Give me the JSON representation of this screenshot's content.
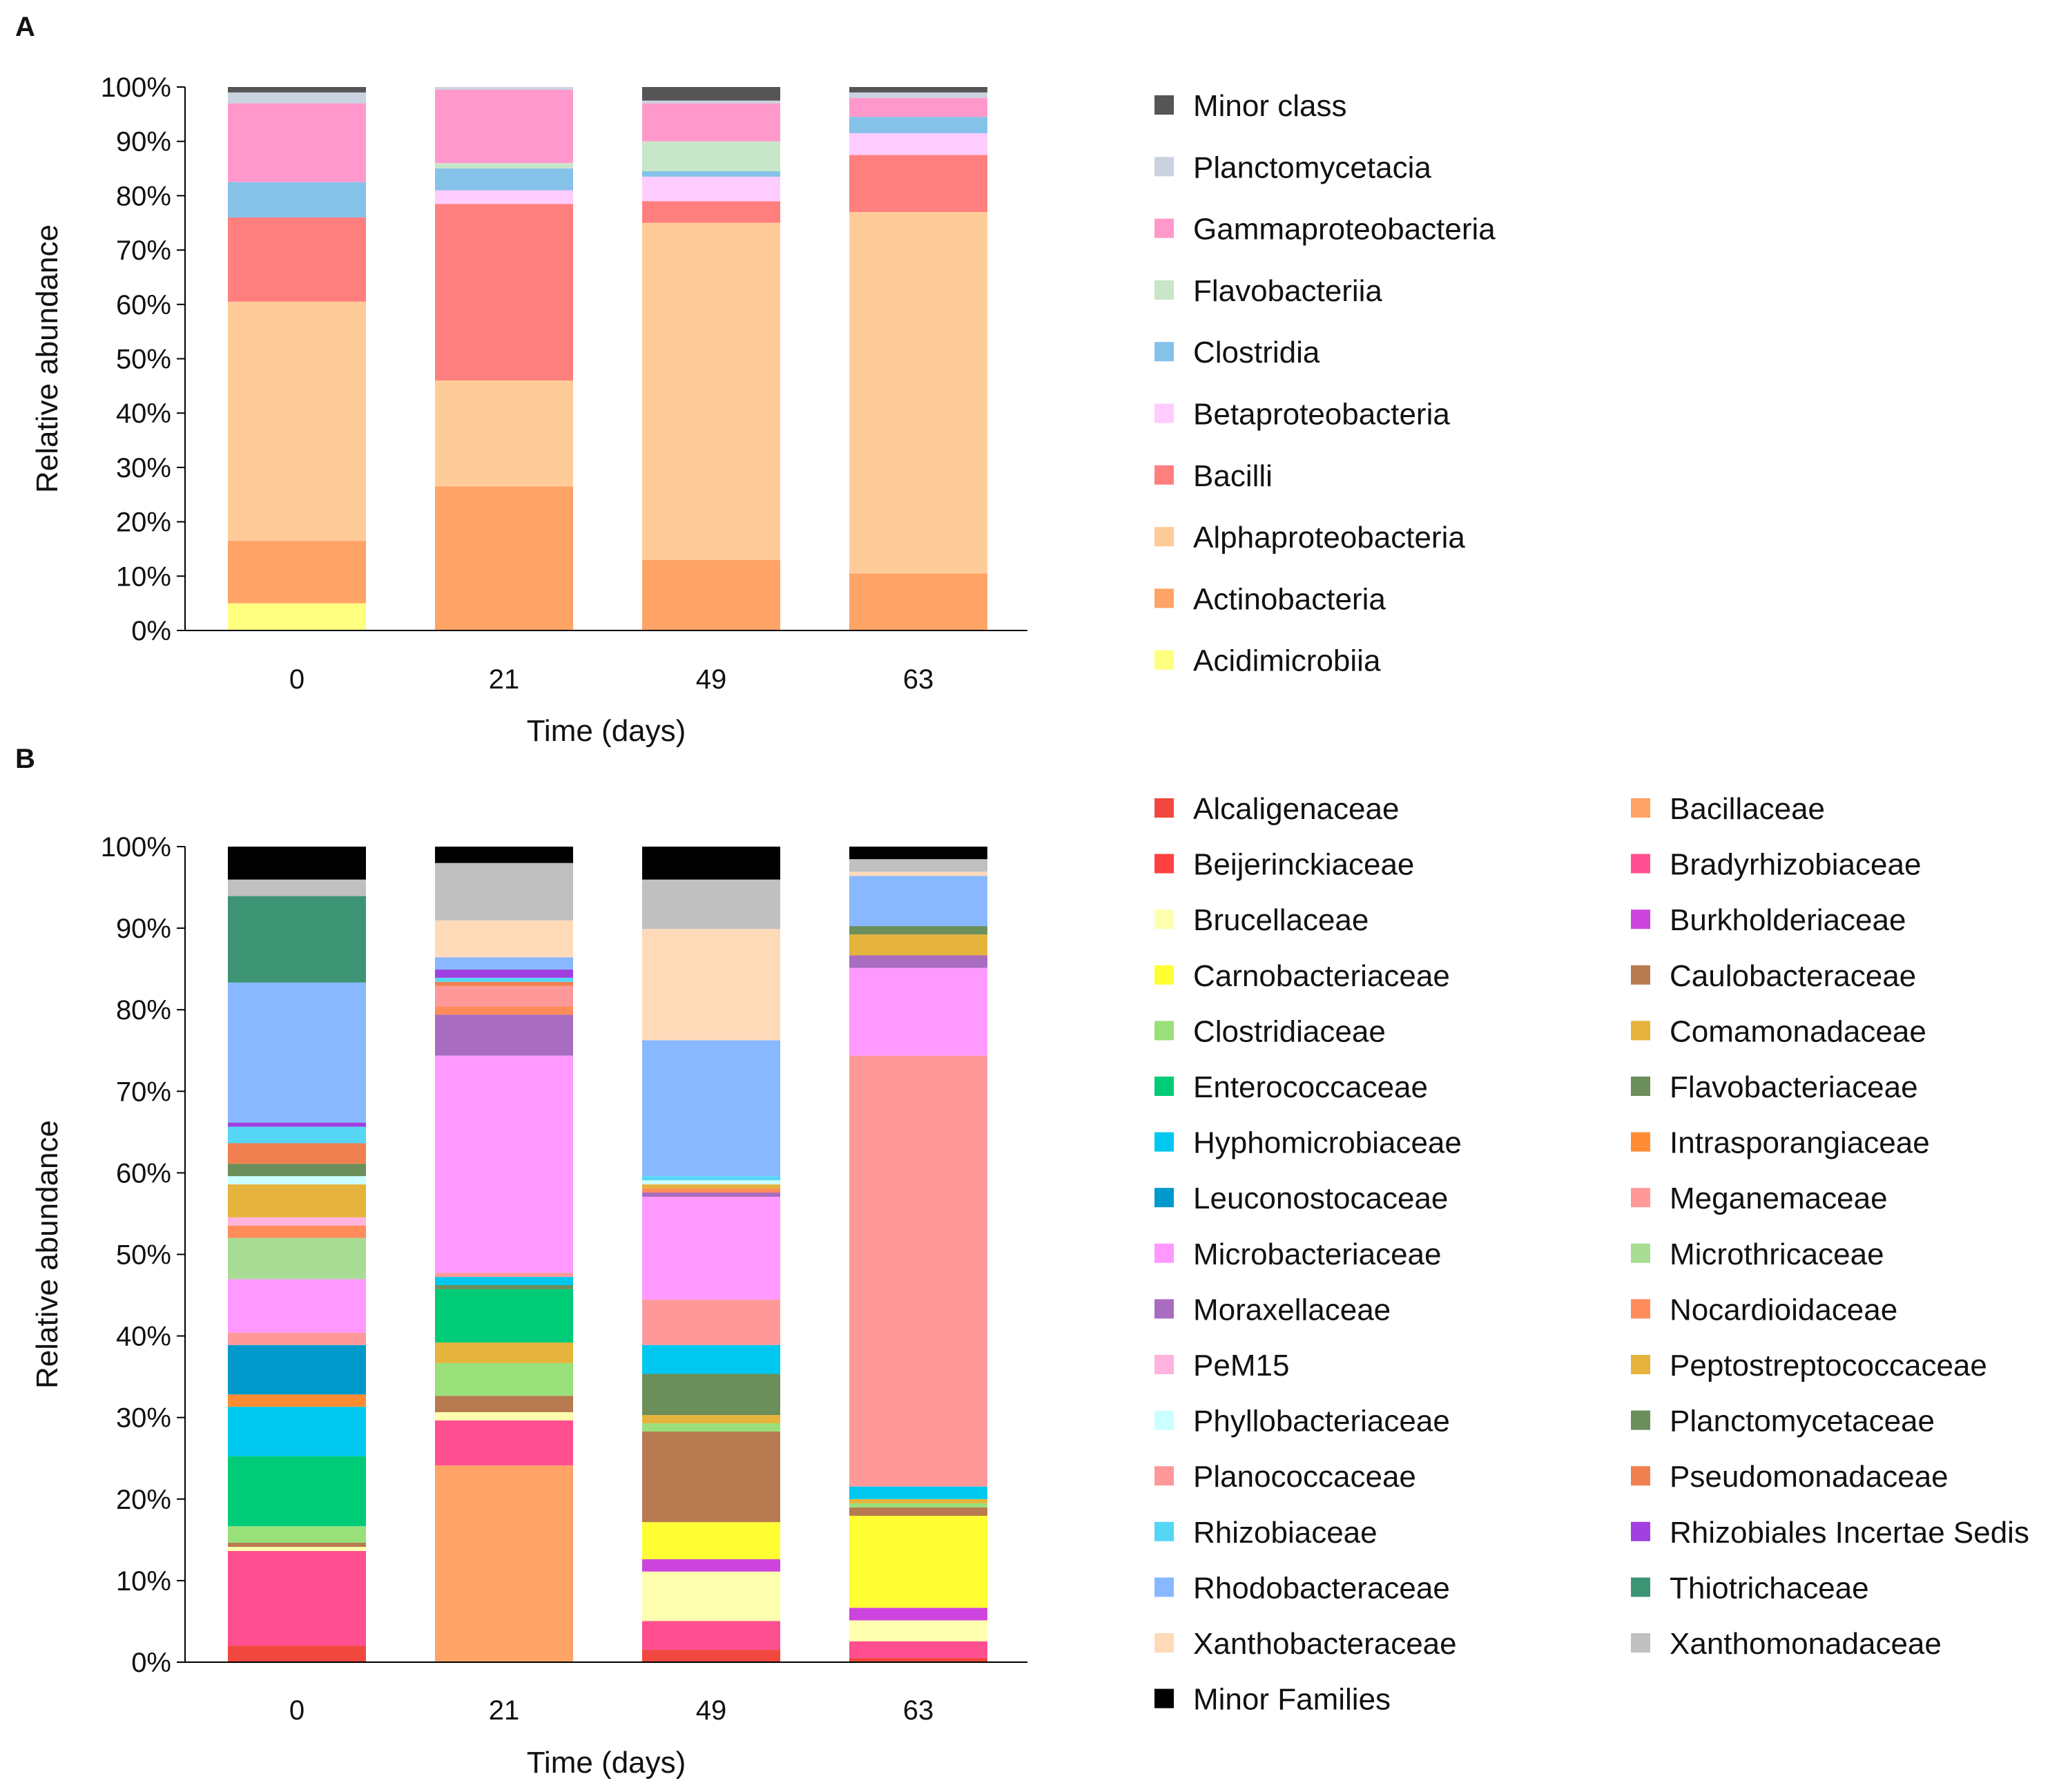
{
  "chart_data": [
    {
      "type": "bar",
      "stacked": true,
      "panel": "A",
      "xlabel": "Time (days)",
      "ylabel": "Relative abundance",
      "ylim": [
        0,
        100
      ],
      "yticks": [
        "0%",
        "10%",
        "20%",
        "30%",
        "40%",
        "50%",
        "60%",
        "70%",
        "80%",
        "90%",
        "100%"
      ],
      "categories": [
        "0",
        "21",
        "49",
        "63"
      ],
      "series": [
        {
          "name": "Acidimicrobiia",
          "color": "#FFFF80",
          "values": [
            5,
            0,
            0,
            0
          ]
        },
        {
          "name": "Actinobacteria",
          "color": "#FFA366",
          "values": [
            11.5,
            26.5,
            13,
            10.5
          ]
        },
        {
          "name": "Alphaproteobacteria",
          "color": "#FFCC99",
          "values": [
            44,
            19.5,
            62,
            66.5
          ]
        },
        {
          "name": "Bacilli",
          "color": "#FF7F7F",
          "values": [
            15.5,
            32.5,
            4,
            10.5
          ]
        },
        {
          "name": "Betaproteobacteria",
          "color": "#FFCCFF",
          "values": [
            0,
            2.5,
            4.5,
            4
          ]
        },
        {
          "name": "Clostridia",
          "color": "#85C1E9",
          "values": [
            6.5,
            4,
            1,
            3
          ]
        },
        {
          "name": "Flavobacteriia",
          "color": "#C8E6C9",
          "values": [
            0,
            1,
            5.5,
            0
          ]
        },
        {
          "name": "Gammaproteobacteria",
          "color": "#FF99CC",
          "values": [
            14.5,
            13.5,
            7,
            3.5
          ]
        },
        {
          "name": "Planctomycetacia",
          "color": "#C9D3E0",
          "values": [
            2,
            0.5,
            0.5,
            1
          ]
        },
        {
          "name": "Minor class",
          "color": "#555555",
          "values": [
            1,
            0,
            2.5,
            1
          ]
        }
      ]
    },
    {
      "type": "bar",
      "stacked": true,
      "panel": "B",
      "xlabel": "Time (days)",
      "ylabel": "Relative abundance",
      "ylim": [
        0,
        100
      ],
      "yticks": [
        "0%",
        "10%",
        "20%",
        "30%",
        "40%",
        "50%",
        "60%",
        "70%",
        "80%",
        "90%",
        "100%"
      ],
      "categories": [
        "0",
        "21",
        "49",
        "63"
      ],
      "series": [
        {
          "name": "Alcaligenaceae",
          "color": "#F0473E",
          "values": [
            2,
            0,
            1.5,
            0.5
          ]
        },
        {
          "name": "Bacillaceae",
          "color": "#FFA366",
          "values": [
            0,
            24,
            0,
            0
          ]
        },
        {
          "name": "Beijerinckiaceae",
          "color": "#FF4040",
          "values": [
            0,
            0,
            0,
            0
          ]
        },
        {
          "name": "Bradyrhizobiaceae",
          "color": "#FF4F91",
          "values": [
            11.5,
            5.5,
            3.5,
            2
          ]
        },
        {
          "name": "Brucellaceae",
          "color": "#FFFFB0",
          "values": [
            0.5,
            1,
            6,
            2.5
          ]
        },
        {
          "name": "Burkholderiaceae",
          "color": "#CC44DD",
          "values": [
            0,
            0,
            1.5,
            1.5
          ]
        },
        {
          "name": "Carnobacteriaceae",
          "color": "#FFFF33",
          "values": [
            0,
            0,
            4.5,
            11
          ]
        },
        {
          "name": "Caulobacteraceae",
          "color": "#B87A50",
          "values": [
            0.5,
            2,
            11,
            1
          ]
        },
        {
          "name": "Clostridiaceae",
          "color": "#99E07A",
          "values": [
            2,
            4,
            1,
            0.5
          ]
        },
        {
          "name": "Comamonadaceae",
          "color": "#E6B33C",
          "values": [
            0,
            2.5,
            1,
            0.5
          ]
        },
        {
          "name": "Enterococcaceae",
          "color": "#00CC77",
          "values": [
            8.5,
            6.5,
            0,
            0
          ]
        },
        {
          "name": "Flavobacteriaceae",
          "color": "#6B8E5A",
          "values": [
            0,
            0.5,
            5,
            0
          ]
        },
        {
          "name": "Hyphomicrobiaceae",
          "color": "#00C8F0",
          "values": [
            6,
            1,
            3.5,
            1.5
          ]
        },
        {
          "name": "Intrasporangiaceae",
          "color": "#FF8C33",
          "values": [
            1.5,
            0,
            0,
            0
          ]
        },
        {
          "name": "Leuconostocaceae",
          "color": "#0099CC",
          "values": [
            6,
            0,
            0,
            0
          ]
        },
        {
          "name": "Meganemaceae",
          "color": "#FF9999",
          "values": [
            1.5,
            0.5,
            5.5,
            51.5
          ]
        },
        {
          "name": "Microbacteriaceae",
          "color": "#FF99FF",
          "values": [
            6.5,
            26.5,
            12.5,
            10.5
          ]
        },
        {
          "name": "Microthricaceae",
          "color": "#A8DC94",
          "values": [
            5,
            0,
            0,
            0
          ]
        },
        {
          "name": "Moraxellaceae",
          "color": "#A86CC0",
          "values": [
            0,
            5,
            0.5,
            1.5
          ]
        },
        {
          "name": "Nocardioidaceae",
          "color": "#FF8C5A",
          "values": [
            1.5,
            1,
            0.5,
            0
          ]
        },
        {
          "name": "PeM15",
          "color": "#FFB3DE",
          "values": [
            1,
            0,
            0,
            0
          ]
        },
        {
          "name": "Peptostreptococcaceae",
          "color": "#E6B33C",
          "values": [
            4,
            0,
            0.5,
            2.5
          ]
        },
        {
          "name": "Phyllobacteriaceae",
          "color": "#CCFFFF",
          "values": [
            1,
            0,
            0.5,
            0
          ]
        },
        {
          "name": "Planctomycetaceae",
          "color": "#6B8E5A",
          "values": [
            1.5,
            0,
            0,
            1
          ]
        },
        {
          "name": "Planococcaceae",
          "color": "#FF9999",
          "values": [
            0,
            2.5,
            0,
            0
          ]
        },
        {
          "name": "Pseudomonadaceae",
          "color": "#F08050",
          "values": [
            2.5,
            0.5,
            0,
            0
          ]
        },
        {
          "name": "Rhizobiaceae",
          "color": "#55D6F5",
          "values": [
            2,
            0.5,
            0.5,
            0
          ]
        },
        {
          "name": "Rhizobiales Incertae Sedis",
          "color": "#A040E0",
          "values": [
            0.5,
            1,
            0,
            0
          ]
        },
        {
          "name": "Rhodobacteraceae",
          "color": "#88B8FF",
          "values": [
            17,
            1.5,
            16.5,
            6
          ]
        },
        {
          "name": "Thiotrichaceae",
          "color": "#3D9475",
          "values": [
            10.5,
            0,
            0,
            0
          ]
        },
        {
          "name": "Xanthobacteraceae",
          "color": "#FFDAB9",
          "values": [
            0,
            4.5,
            13.5,
            0.5
          ]
        },
        {
          "name": "Xanthomonadaceae",
          "color": "#C0C0C0",
          "values": [
            2,
            7,
            6,
            1.5
          ]
        },
        {
          "name": "Minor Families",
          "color": "#000000",
          "values": [
            4,
            2,
            4,
            1.5
          ]
        }
      ]
    }
  ],
  "panels": {
    "a": {
      "label": "A",
      "legend_entries": [
        "Minor class",
        "Planctomycetacia",
        "Gammaproteobacteria",
        "Flavobacteriia",
        "Clostridia",
        "Betaproteobacteria",
        "Bacilli",
        "Alphaproteobacteria",
        "Actinobacteria",
        "Acidimicrobiia"
      ]
    },
    "b": {
      "label": "B",
      "legend_columns": [
        [
          "Alcaligenaceae",
          "Beijerinckiaceae",
          "Brucellaceae",
          "Carnobacteriaceae",
          "Clostridiaceae",
          "Enterococcaceae",
          "Hyphomicrobiaceae",
          "Leuconostocaceae",
          "Microbacteriaceae",
          "Moraxellaceae",
          "PeM15",
          "Phyllobacteriaceae",
          "Planococcaceae",
          "Rhizobiaceae",
          "Rhodobacteraceae",
          "Xanthobacteraceae",
          "Minor Families"
        ],
        [
          "Bacillaceae",
          "Bradyrhizobiaceae",
          "Burkholderiaceae",
          "Caulobacteraceae",
          "Comamonadaceae",
          "Flavobacteriaceae",
          "Intrasporangiaceae",
          "Meganemaceae",
          "Microthricaceae",
          "Nocardioidaceae",
          "Peptostreptococcaceae",
          "Planctomycetaceae",
          "Pseudomonadaceae",
          "Rhizobiales Incertae Sedis",
          "Thiotrichaceae",
          "Xanthomonadaceae"
        ]
      ]
    }
  }
}
